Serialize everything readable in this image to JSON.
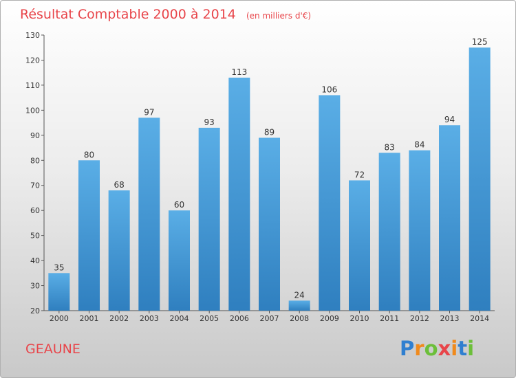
{
  "chart_data": {
    "type": "bar",
    "title": "Résultat Comptable 2000 à 2014",
    "subtitle": "(en milliers d'€)",
    "categories": [
      "2000",
      "2001",
      "2002",
      "2003",
      "2004",
      "2005",
      "2006",
      "2007",
      "2008",
      "2009",
      "2010",
      "2011",
      "2012",
      "2013",
      "2014"
    ],
    "values": [
      35,
      80,
      68,
      97,
      60,
      93,
      113,
      89,
      24,
      106,
      72,
      83,
      84,
      94,
      125
    ],
    "ylim": [
      20,
      130
    ],
    "yticks": [
      20,
      30,
      40,
      50,
      60,
      70,
      80,
      90,
      100,
      110,
      120,
      130
    ],
    "grid": false,
    "bar_color_light": "#5aaee6",
    "bar_color_dark": "#2f7fbf"
  },
  "town_label": "GEAUNE",
  "brand": {
    "letters": [
      "P",
      "r",
      "o",
      "x",
      "i",
      "t",
      "i"
    ],
    "colors": [
      "#2f7fd0",
      "#f08a1c",
      "#6cbf3a",
      "#e8454a",
      "#f08a1c",
      "#2f7fd0",
      "#6cbf3a"
    ]
  },
  "accent_color": "#e8454a"
}
